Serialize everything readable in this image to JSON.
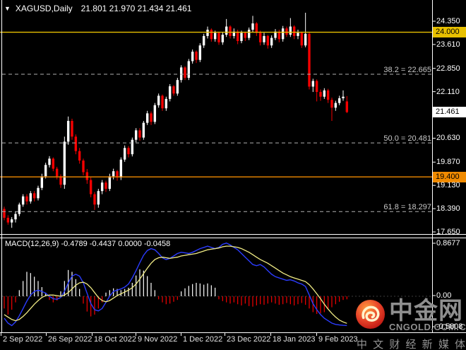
{
  "header": {
    "dropdown_icon": "▼",
    "symbol": "XAGUSD,Daily",
    "ohlc": "21.801 21.970 21.434 21.461"
  },
  "watermark": {
    "brand": "中金网",
    "domain": "CNGOLD.COM.CN",
    "tagline": "中 文 财 经 新 媒 体"
  },
  "chart_data": {
    "type": "candlestick",
    "title": "XAGUSD,Daily",
    "price_panel": {
      "y_axis_ticks": [
        24.35,
        23.61,
        22.85,
        22.11,
        20.63,
        19.87,
        19.13,
        18.39,
        17.65
      ],
      "y_range": [
        17.61,
        24.98
      ],
      "highlighted_levels": [
        {
          "price": 24.0,
          "label": "24.000",
          "bg": "#E8C000",
          "line": true
        },
        {
          "price": 19.4,
          "label": "19.400",
          "bg": "#F08A00",
          "line": true
        },
        {
          "price": 21.461,
          "label": "21.461",
          "bg": "#FFFFFF",
          "line": false
        }
      ],
      "fibonacci": [
        {
          "label": "38.2 = 22.665",
          "price": 22.665
        },
        {
          "label": "50.0 = 20.481",
          "price": 20.481
        },
        {
          "label": "61.8 = 18.297",
          "price": 18.297
        }
      ],
      "ohlc": [
        [
          18.38,
          18.45,
          18.02,
          18.1
        ],
        [
          18.1,
          18.18,
          17.88,
          17.95
        ],
        [
          17.95,
          18.12,
          17.78,
          18.05
        ],
        [
          18.05,
          18.3,
          17.95,
          18.22
        ],
        [
          18.22,
          18.58,
          18.15,
          18.52
        ],
        [
          18.52,
          18.85,
          18.45,
          18.78
        ],
        [
          18.78,
          18.85,
          18.52,
          18.62
        ],
        [
          18.62,
          18.95,
          18.55,
          18.88
        ],
        [
          18.88,
          18.95,
          18.62,
          18.72
        ],
        [
          18.72,
          19.12,
          18.65,
          19.05
        ],
        [
          19.05,
          19.5,
          18.98,
          19.42
        ],
        [
          19.42,
          19.85,
          19.35,
          19.78
        ],
        [
          19.78,
          20.06,
          19.7,
          19.98
        ],
        [
          19.98,
          20.02,
          19.58,
          19.66
        ],
        [
          19.66,
          19.72,
          19.32,
          19.42
        ],
        [
          19.42,
          19.48,
          19.05,
          19.15
        ],
        [
          19.15,
          20.68,
          19.02,
          20.52
        ],
        [
          20.52,
          21.32,
          20.42,
          21.18
        ],
        [
          21.18,
          21.25,
          20.58,
          20.68
        ],
        [
          20.68,
          20.75,
          20.12,
          20.22
        ],
        [
          20.22,
          20.32,
          19.82,
          19.92
        ],
        [
          19.92,
          19.98,
          19.45,
          19.55
        ],
        [
          19.55,
          19.65,
          19.18,
          19.3
        ],
        [
          19.3,
          19.38,
          18.75,
          18.85
        ],
        [
          18.85,
          18.92,
          18.35,
          18.52
        ],
        [
          18.52,
          19.02,
          18.42,
          18.95
        ],
        [
          18.95,
          19.3,
          18.85,
          19.22
        ],
        [
          19.22,
          19.28,
          18.92,
          19.02
        ],
        [
          19.02,
          19.5,
          18.95,
          19.42
        ],
        [
          19.42,
          19.66,
          19.32,
          19.58
        ],
        [
          19.58,
          19.62,
          19.28,
          19.38
        ],
        [
          19.38,
          20.02,
          19.3,
          19.95
        ],
        [
          19.95,
          20.4,
          19.88,
          20.32
        ],
        [
          20.32,
          20.38,
          20.02,
          20.12
        ],
        [
          20.12,
          20.65,
          20.05,
          20.58
        ],
        [
          20.58,
          20.95,
          20.5,
          20.88
        ],
        [
          20.88,
          20.95,
          20.55,
          20.65
        ],
        [
          20.65,
          21.18,
          20.58,
          21.12
        ],
        [
          21.12,
          21.5,
          21.05,
          21.42
        ],
        [
          21.42,
          21.48,
          21.05,
          21.15
        ],
        [
          21.15,
          21.75,
          21.08,
          21.68
        ],
        [
          21.68,
          22.05,
          21.6,
          21.98
        ],
        [
          21.98,
          22.02,
          21.5,
          21.58
        ],
        [
          21.58,
          21.95,
          21.5,
          21.88
        ],
        [
          21.88,
          22.35,
          21.8,
          22.28
        ],
        [
          22.28,
          22.32,
          21.98,
          22.05
        ],
        [
          22.05,
          22.55,
          21.98,
          22.48
        ],
        [
          22.48,
          22.95,
          22.4,
          22.88
        ],
        [
          22.88,
          22.92,
          22.48,
          22.55
        ],
        [
          22.55,
          23.15,
          22.48,
          23.08
        ],
        [
          23.08,
          23.45,
          23.0,
          23.38
        ],
        [
          23.38,
          23.42,
          23.02,
          23.12
        ],
        [
          23.12,
          23.65,
          23.05,
          23.58
        ],
        [
          23.58,
          23.95,
          23.5,
          23.88
        ],
        [
          23.88,
          24.18,
          23.8,
          24.08
        ],
        [
          24.08,
          24.12,
          23.7,
          23.78
        ],
        [
          23.78,
          24.05,
          23.7,
          23.98
        ],
        [
          23.98,
          24.02,
          23.6,
          23.68
        ],
        [
          23.68,
          24.0,
          23.6,
          23.92
        ],
        [
          23.92,
          24.42,
          23.85,
          24.18
        ],
        [
          24.18,
          24.22,
          23.8,
          23.88
        ],
        [
          23.88,
          24.12,
          23.8,
          24.02
        ],
        [
          24.02,
          24.08,
          23.62,
          23.72
        ],
        [
          23.72,
          24.05,
          23.65,
          23.98
        ],
        [
          23.98,
          24.02,
          23.72,
          23.82
        ],
        [
          23.82,
          24.15,
          23.75,
          24.08
        ],
        [
          24.08,
          24.52,
          24.0,
          24.28
        ],
        [
          24.28,
          24.32,
          23.88,
          23.98
        ],
        [
          23.98,
          24.05,
          23.58,
          23.68
        ],
        [
          23.68,
          23.98,
          23.6,
          23.88
        ],
        [
          23.88,
          23.92,
          23.48,
          23.58
        ],
        [
          23.58,
          23.9,
          23.5,
          23.82
        ],
        [
          23.82,
          24.1,
          23.75,
          24.02
        ],
        [
          24.02,
          24.08,
          23.68,
          23.78
        ],
        [
          23.78,
          24.2,
          23.7,
          24.12
        ],
        [
          24.12,
          24.18,
          23.85,
          23.92
        ],
        [
          23.92,
          24.45,
          23.85,
          24.18
        ],
        [
          24.18,
          24.22,
          23.78,
          23.88
        ],
        [
          23.88,
          24.08,
          23.78,
          23.98
        ],
        [
          23.98,
          24.02,
          23.5,
          23.58
        ],
        [
          23.58,
          24.62,
          23.52,
          23.95
        ],
        [
          23.95,
          24.0,
          22.18,
          22.27
        ],
        [
          22.27,
          22.52,
          22.1,
          22.45
        ],
        [
          22.45,
          22.5,
          21.8,
          22.1
        ],
        [
          22.1,
          22.18,
          21.82,
          21.95
        ],
        [
          21.95,
          22.22,
          21.88,
          22.15
        ],
        [
          22.15,
          22.2,
          21.75,
          21.85
        ],
        [
          21.85,
          21.92,
          21.18,
          21.6
        ],
        [
          21.6,
          21.82,
          21.5,
          21.75
        ],
        [
          21.75,
          21.98,
          21.68,
          21.9
        ],
        [
          21.9,
          22.15,
          21.82,
          21.95
        ],
        [
          21.8,
          21.97,
          21.43,
          21.46
        ]
      ]
    },
    "macd_panel": {
      "label": "MACD(12,26,9) -0.4789 -0.4437 0.0000 -0.0458",
      "y_axis_tick_labels": [
        "0.8677",
        "0.00",
        "-0.5808"
      ],
      "histogram": [
        -0.2,
        -0.3,
        -0.22,
        -0.1,
        0.1,
        0.25,
        0.4,
        0.38,
        0.32,
        0.25,
        0.15,
        0.06,
        -0.06,
        -0.1,
        -0.07,
        0.08,
        0.25,
        0.43,
        0.4,
        0.28,
        0.12,
        -0.12,
        -0.25,
        -0.33,
        -0.3,
        -0.2,
        -0.1,
        0.06,
        0.1,
        0.13,
        0.12,
        0.1,
        0.12,
        0.14,
        0.22,
        0.34,
        0.44,
        0.42,
        0.33,
        0.22,
        0.1,
        -0.05,
        -0.1,
        -0.13,
        -0.12,
        -0.09,
        -0.06,
        0.08,
        0.13,
        0.17,
        0.2,
        0.22,
        0.21,
        0.19,
        0.21,
        0.18,
        0.14,
        -0.05,
        -0.08,
        -0.1,
        -0.12,
        -0.1,
        -0.13,
        -0.15,
        -0.12,
        -0.16,
        -0.17,
        -0.15,
        -0.13,
        -0.14,
        -0.12,
        -0.1,
        -0.12,
        -0.14,
        -0.13,
        -0.11,
        -0.13,
        -0.15,
        -0.13,
        -0.11,
        -0.14,
        -0.2,
        -0.26,
        -0.29,
        -0.28,
        -0.26,
        -0.22,
        -0.18,
        -0.13,
        -0.09,
        -0.06,
        -0.05
      ],
      "macd_line": [
        -0.36,
        -0.44,
        -0.48,
        -0.42,
        -0.32,
        -0.2,
        -0.08,
        0.02,
        0.08,
        0.1,
        0.08,
        0.05,
        0.0,
        -0.04,
        -0.05,
        -0.02,
        0.08,
        0.22,
        0.33,
        0.36,
        0.33,
        0.22,
        0.05,
        -0.12,
        -0.22,
        -0.24,
        -0.2,
        -0.1,
        0.0,
        0.08,
        0.1,
        0.12,
        0.15,
        0.2,
        0.3,
        0.42,
        0.55,
        0.67,
        0.75,
        0.78,
        0.76,
        0.7,
        0.63,
        0.6,
        0.62,
        0.66,
        0.7,
        0.72,
        0.71,
        0.7,
        0.72,
        0.75,
        0.78,
        0.8,
        0.82,
        0.8,
        0.78,
        0.8,
        0.85,
        0.87,
        0.84,
        0.8,
        0.76,
        0.7,
        0.64,
        0.58,
        0.52,
        0.5,
        0.52,
        0.48,
        0.42,
        0.36,
        0.32,
        0.3,
        0.28,
        0.26,
        0.27,
        0.25,
        0.22,
        0.2,
        0.16,
        0.02,
        -0.12,
        -0.22,
        -0.3,
        -0.36,
        -0.4,
        -0.44,
        -0.46,
        -0.47,
        -0.475,
        -0.4789
      ],
      "signal_line": [
        -0.3,
        -0.34,
        -0.38,
        -0.4,
        -0.38,
        -0.33,
        -0.27,
        -0.2,
        -0.13,
        -0.07,
        -0.02,
        0.01,
        0.02,
        0.02,
        0.01,
        0.0,
        0.02,
        0.06,
        0.12,
        0.18,
        0.22,
        0.23,
        0.2,
        0.14,
        0.06,
        -0.02,
        -0.07,
        -0.09,
        -0.07,
        -0.03,
        0.01,
        0.04,
        0.07,
        0.1,
        0.14,
        0.2,
        0.28,
        0.37,
        0.46,
        0.54,
        0.6,
        0.63,
        0.64,
        0.63,
        0.62,
        0.63,
        0.64,
        0.66,
        0.67,
        0.68,
        0.69,
        0.7,
        0.72,
        0.74,
        0.76,
        0.77,
        0.78,
        0.79,
        0.81,
        0.82,
        0.82,
        0.81,
        0.8,
        0.78,
        0.75,
        0.72,
        0.68,
        0.64,
        0.6,
        0.57,
        0.54,
        0.5,
        0.46,
        0.42,
        0.38,
        0.35,
        0.32,
        0.3,
        0.28,
        0.26,
        0.24,
        0.19,
        0.12,
        0.04,
        -0.04,
        -0.13,
        -0.21,
        -0.28,
        -0.34,
        -0.39,
        -0.42,
        -0.4437
      ]
    },
    "x_axis": {
      "labels": [
        "2 Sep 2022",
        "26 Sep 2022",
        "18 Oct 2022",
        "9 Nov 2022",
        "1 Dec 2022",
        "23 Dec 2022",
        "18 Jan 2023",
        "9 Feb 2023"
      ]
    },
    "colors": {
      "background": "#000000",
      "bull": "#FFFFFF",
      "bear": "#F50000",
      "hist_pos": "#FFFFFF",
      "hist_neg": "#F50000",
      "macd_line": "#2B3CFF",
      "signal_line": "#F0EB85",
      "fib_line": "#B0B0B0",
      "fib_text": "#C8C8C8",
      "axis_text": "#FFFFFF",
      "border": "#FFFFFF",
      "level_24000": "#E8C000",
      "level_19400": "#F08A00",
      "watermark_gray": "#8F8F8F"
    }
  }
}
